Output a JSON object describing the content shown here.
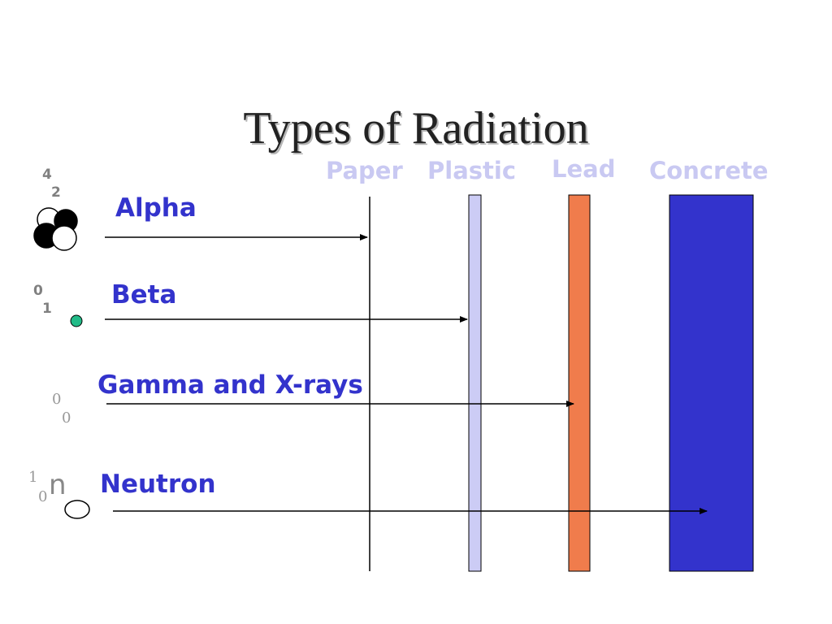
{
  "title": "Types of Radiation",
  "barriers": {
    "paper": "Paper",
    "plastic": "Plastic",
    "lead": "Lead",
    "concrete": "Concrete"
  },
  "radiation": {
    "alpha": {
      "label": "Alpha",
      "mass": "4",
      "charge": "2"
    },
    "beta": {
      "label": "Beta",
      "mass": "0",
      "charge": "1"
    },
    "gamma": {
      "label": "Gamma and X-rays",
      "mass": "0",
      "charge": "0"
    },
    "neutron": {
      "label": "Neutron",
      "mass": "1",
      "charge": "0",
      "symbol": "n"
    }
  },
  "colors": {
    "label": "#3333cc",
    "barrier_label": "#c9c9f2",
    "plastic": "#ccccf5",
    "lead": "#f07c4c",
    "concrete": "#3333cc",
    "beta_particle": "#22bb88"
  }
}
